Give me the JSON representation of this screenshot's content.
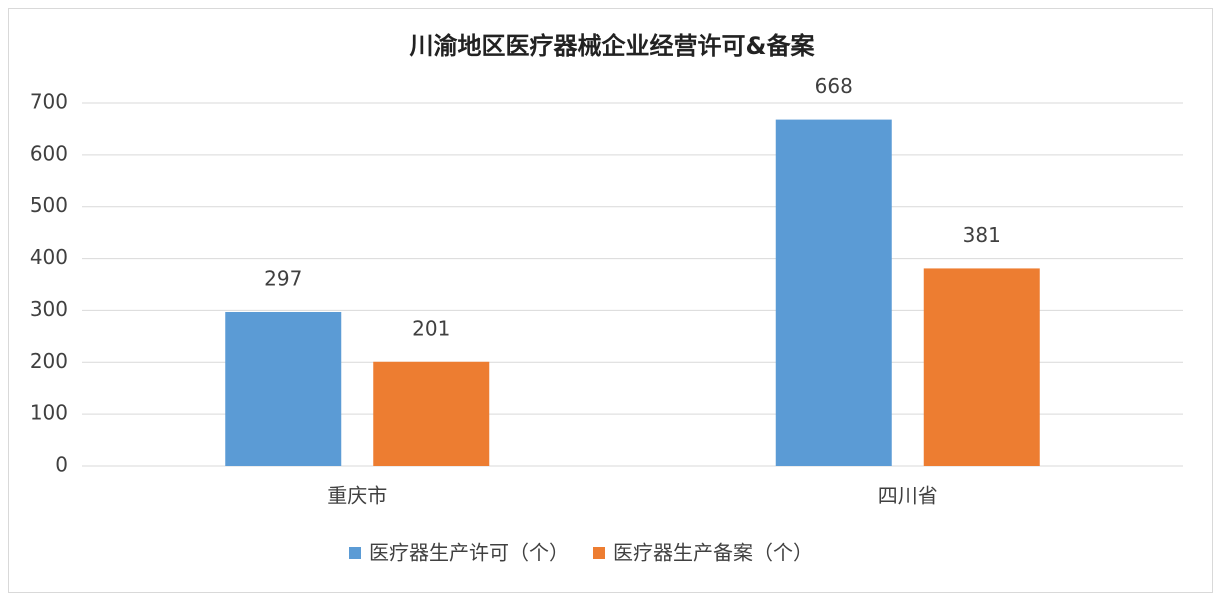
{
  "chart_data": {
    "type": "bar",
    "title": "川渝地区医疗器械企业经营许可&备案",
    "categories": [
      "重庆市",
      "四川省"
    ],
    "series": [
      {
        "name": "医疗器生产许可（个）",
        "color": "#5b9bd5",
        "values": [
          297,
          668
        ]
      },
      {
        "name": "医疗器生产备案（个）",
        "color": "#ed7d31",
        "values": [
          201,
          381
        ]
      }
    ],
    "ylim": [
      0,
      700
    ],
    "yticks": [
      0,
      100,
      200,
      300,
      400,
      500,
      600,
      700
    ],
    "grid": true,
    "legend": "bottom"
  }
}
